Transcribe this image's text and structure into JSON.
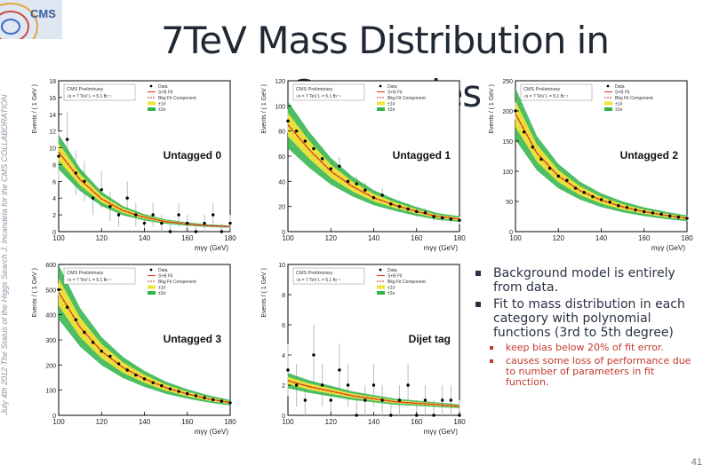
{
  "slide": {
    "title": "7TeV Mass Distribution in Categories",
    "side_text": "July 4th 2012  The Status of the Higgs Search   J. Incandela for the CMS COLLABORATION",
    "logo_text": "CMS",
    "page_number": "41"
  },
  "notes": {
    "bullets": [
      {
        "text": "Background model is entirely from data."
      },
      {
        "text": "Fit to mass distribution in each category with polynomial functions (3rd to 5th degree)"
      },
      {
        "text": "keep bias below 20% of fit error.",
        "sub": true
      },
      {
        "text": "causes some loss of performance due to number of parameters in fit function.",
        "sub": true
      }
    ]
  },
  "chart_data": [
    {
      "type": "scatter",
      "category_label": "Untagged 0",
      "header": "CMS Preliminary",
      "lumi": "√s = 7 TeV L = 5.1 fb⁻¹",
      "ylabel": "Events / ( 1 GeV )",
      "xlabel": "mγγ (GeV)",
      "xlim": [
        100,
        180
      ],
      "ylim": [
        0,
        18
      ],
      "xticks": [
        100,
        120,
        140,
        160,
        180
      ],
      "yticks": [
        0,
        2,
        4,
        6,
        8,
        10,
        12,
        14,
        16,
        18
      ],
      "legend": [
        "Data",
        "S+B Fit",
        "Bkg Fit Component",
        "±1σ",
        "±2σ"
      ],
      "bkg_fit": {
        "x": [
          100,
          110,
          120,
          130,
          140,
          150,
          160,
          170,
          180
        ],
        "y": [
          9.5,
          6.2,
          3.9,
          2.5,
          1.7,
          1.2,
          0.9,
          0.7,
          0.6
        ]
      },
      "data": {
        "x": [
          100,
          104,
          108,
          112,
          116,
          120,
          124,
          128,
          132,
          136,
          140,
          144,
          148,
          152,
          156,
          160,
          164,
          168,
          172,
          176,
          180
        ],
        "y": [
          9,
          11,
          7,
          6,
          4,
          5,
          3,
          2,
          4,
          2,
          1,
          2,
          1,
          0,
          2,
          1,
          0,
          1,
          2,
          0,
          1
        ]
      }
    },
    {
      "type": "scatter",
      "category_label": "Untagged 1",
      "header": "CMS Preliminary",
      "lumi": "√s = 7 TeV L = 5.1 fb⁻¹",
      "ylabel": "Events / ( 1 GeV )",
      "xlabel": "mγγ (GeV)",
      "xlim": [
        100,
        180
      ],
      "ylim": [
        0,
        120
      ],
      "xticks": [
        100,
        120,
        140,
        160,
        180
      ],
      "yticks": [
        0,
        20,
        40,
        60,
        80,
        100,
        120
      ],
      "legend": [
        "Data",
        "S+B Fit",
        "Bkg Fit Component",
        "±1σ",
        "±2σ"
      ],
      "bkg_fit": {
        "x": [
          100,
          110,
          120,
          130,
          140,
          150,
          160,
          170,
          180
        ],
        "y": [
          85,
          65,
          48,
          36,
          27,
          21,
          16,
          12,
          10
        ]
      },
      "data": {
        "x": [
          100,
          104,
          108,
          112,
          116,
          120,
          124,
          128,
          132,
          136,
          140,
          144,
          148,
          152,
          156,
          160,
          164,
          168,
          172,
          176,
          180
        ],
        "y": [
          88,
          80,
          72,
          66,
          58,
          50,
          52,
          40,
          38,
          33,
          27,
          29,
          22,
          20,
          18,
          16,
          15,
          12,
          11,
          10,
          9
        ]
      }
    },
    {
      "type": "scatter",
      "category_label": "Untagged 2",
      "header": "CMS Preliminary",
      "lumi": "√s = 7 TeV L = 5.1 fb⁻¹",
      "ylabel": "Events / ( 1 GeV )",
      "xlabel": "mγγ (GeV)",
      "xlim": [
        100,
        180
      ],
      "ylim": [
        0,
        250
      ],
      "xticks": [
        100,
        120,
        140,
        160,
        180
      ],
      "yticks": [
        0,
        50,
        100,
        150,
        200,
        250
      ],
      "legend": [
        "Data",
        "S+B Fit",
        "Bkg Fit Component",
        "±1σ",
        "±2σ"
      ],
      "bkg_fit": {
        "x": [
          100,
          110,
          120,
          130,
          140,
          150,
          160,
          170,
          180
        ],
        "y": [
          195,
          130,
          92,
          68,
          52,
          41,
          33,
          27,
          22
        ]
      },
      "data": {
        "x": [
          100,
          104,
          108,
          112,
          116,
          120,
          124,
          128,
          132,
          136,
          140,
          144,
          148,
          152,
          156,
          160,
          164,
          168,
          172,
          176,
          180
        ],
        "y": [
          200,
          165,
          140,
          120,
          105,
          92,
          85,
          72,
          65,
          58,
          53,
          49,
          43,
          40,
          36,
          33,
          31,
          29,
          26,
          24,
          22
        ]
      }
    },
    {
      "type": "scatter",
      "category_label": "Untagged 3",
      "header": "CMS Preliminary",
      "lumi": "√s = 7 TeV L = 5.1 fb⁻¹",
      "ylabel": "Events / ( 1 GeV )",
      "xlabel": "mγγ (GeV)",
      "xlim": [
        100,
        180
      ],
      "ylim": [
        0,
        600
      ],
      "xticks": [
        100,
        120,
        140,
        160,
        180
      ],
      "yticks": [
        0,
        100,
        200,
        300,
        400,
        500,
        600
      ],
      "legend": [
        "Data",
        "S+B Fit",
        "Bkg Fit Component",
        "±1σ",
        "±2σ"
      ],
      "bkg_fit": {
        "x": [
          100,
          110,
          120,
          130,
          140,
          150,
          160,
          170,
          180
        ],
        "y": [
          490,
          350,
          255,
          190,
          145,
          110,
          85,
          65,
          50
        ]
      },
      "data": {
        "x": [
          100,
          104,
          108,
          112,
          116,
          120,
          124,
          128,
          132,
          136,
          140,
          144,
          148,
          152,
          156,
          160,
          164,
          168,
          172,
          176,
          180
        ],
        "y": [
          500,
          430,
          380,
          330,
          290,
          255,
          235,
          205,
          180,
          160,
          145,
          130,
          118,
          105,
          95,
          86,
          78,
          70,
          62,
          56,
          50
        ]
      }
    },
    {
      "type": "scatter",
      "category_label": "Dijet tag",
      "header": "CMS Preliminary",
      "lumi": "√s = 7 TeV L = 5.1 fb⁻¹",
      "ylabel": "Events / ( 1 GeV )",
      "xlabel": "mγγ (GeV)",
      "xlim": [
        100,
        180
      ],
      "ylim": [
        0,
        10
      ],
      "xticks": [
        100,
        120,
        140,
        160,
        180
      ],
      "yticks": [
        0,
        2,
        4,
        6,
        8,
        10
      ],
      "legend": [
        "Data",
        "S+B Fit",
        "Bkg Fit Component",
        "±1σ",
        "±2σ"
      ],
      "bkg_fit": {
        "x": [
          100,
          110,
          120,
          130,
          140,
          150,
          160,
          170,
          180
        ],
        "y": [
          2.3,
          1.9,
          1.6,
          1.3,
          1.1,
          0.9,
          0.8,
          0.7,
          0.6
        ]
      },
      "data": {
        "x": [
          100,
          104,
          108,
          112,
          116,
          120,
          124,
          128,
          132,
          136,
          140,
          144,
          148,
          152,
          156,
          160,
          164,
          168,
          172,
          176,
          180
        ],
        "y": [
          3,
          2,
          1,
          4,
          2,
          1,
          3,
          2,
          0,
          1,
          2,
          1,
          0,
          1,
          2,
          0,
          1,
          0,
          1,
          1,
          0
        ]
      }
    }
  ]
}
